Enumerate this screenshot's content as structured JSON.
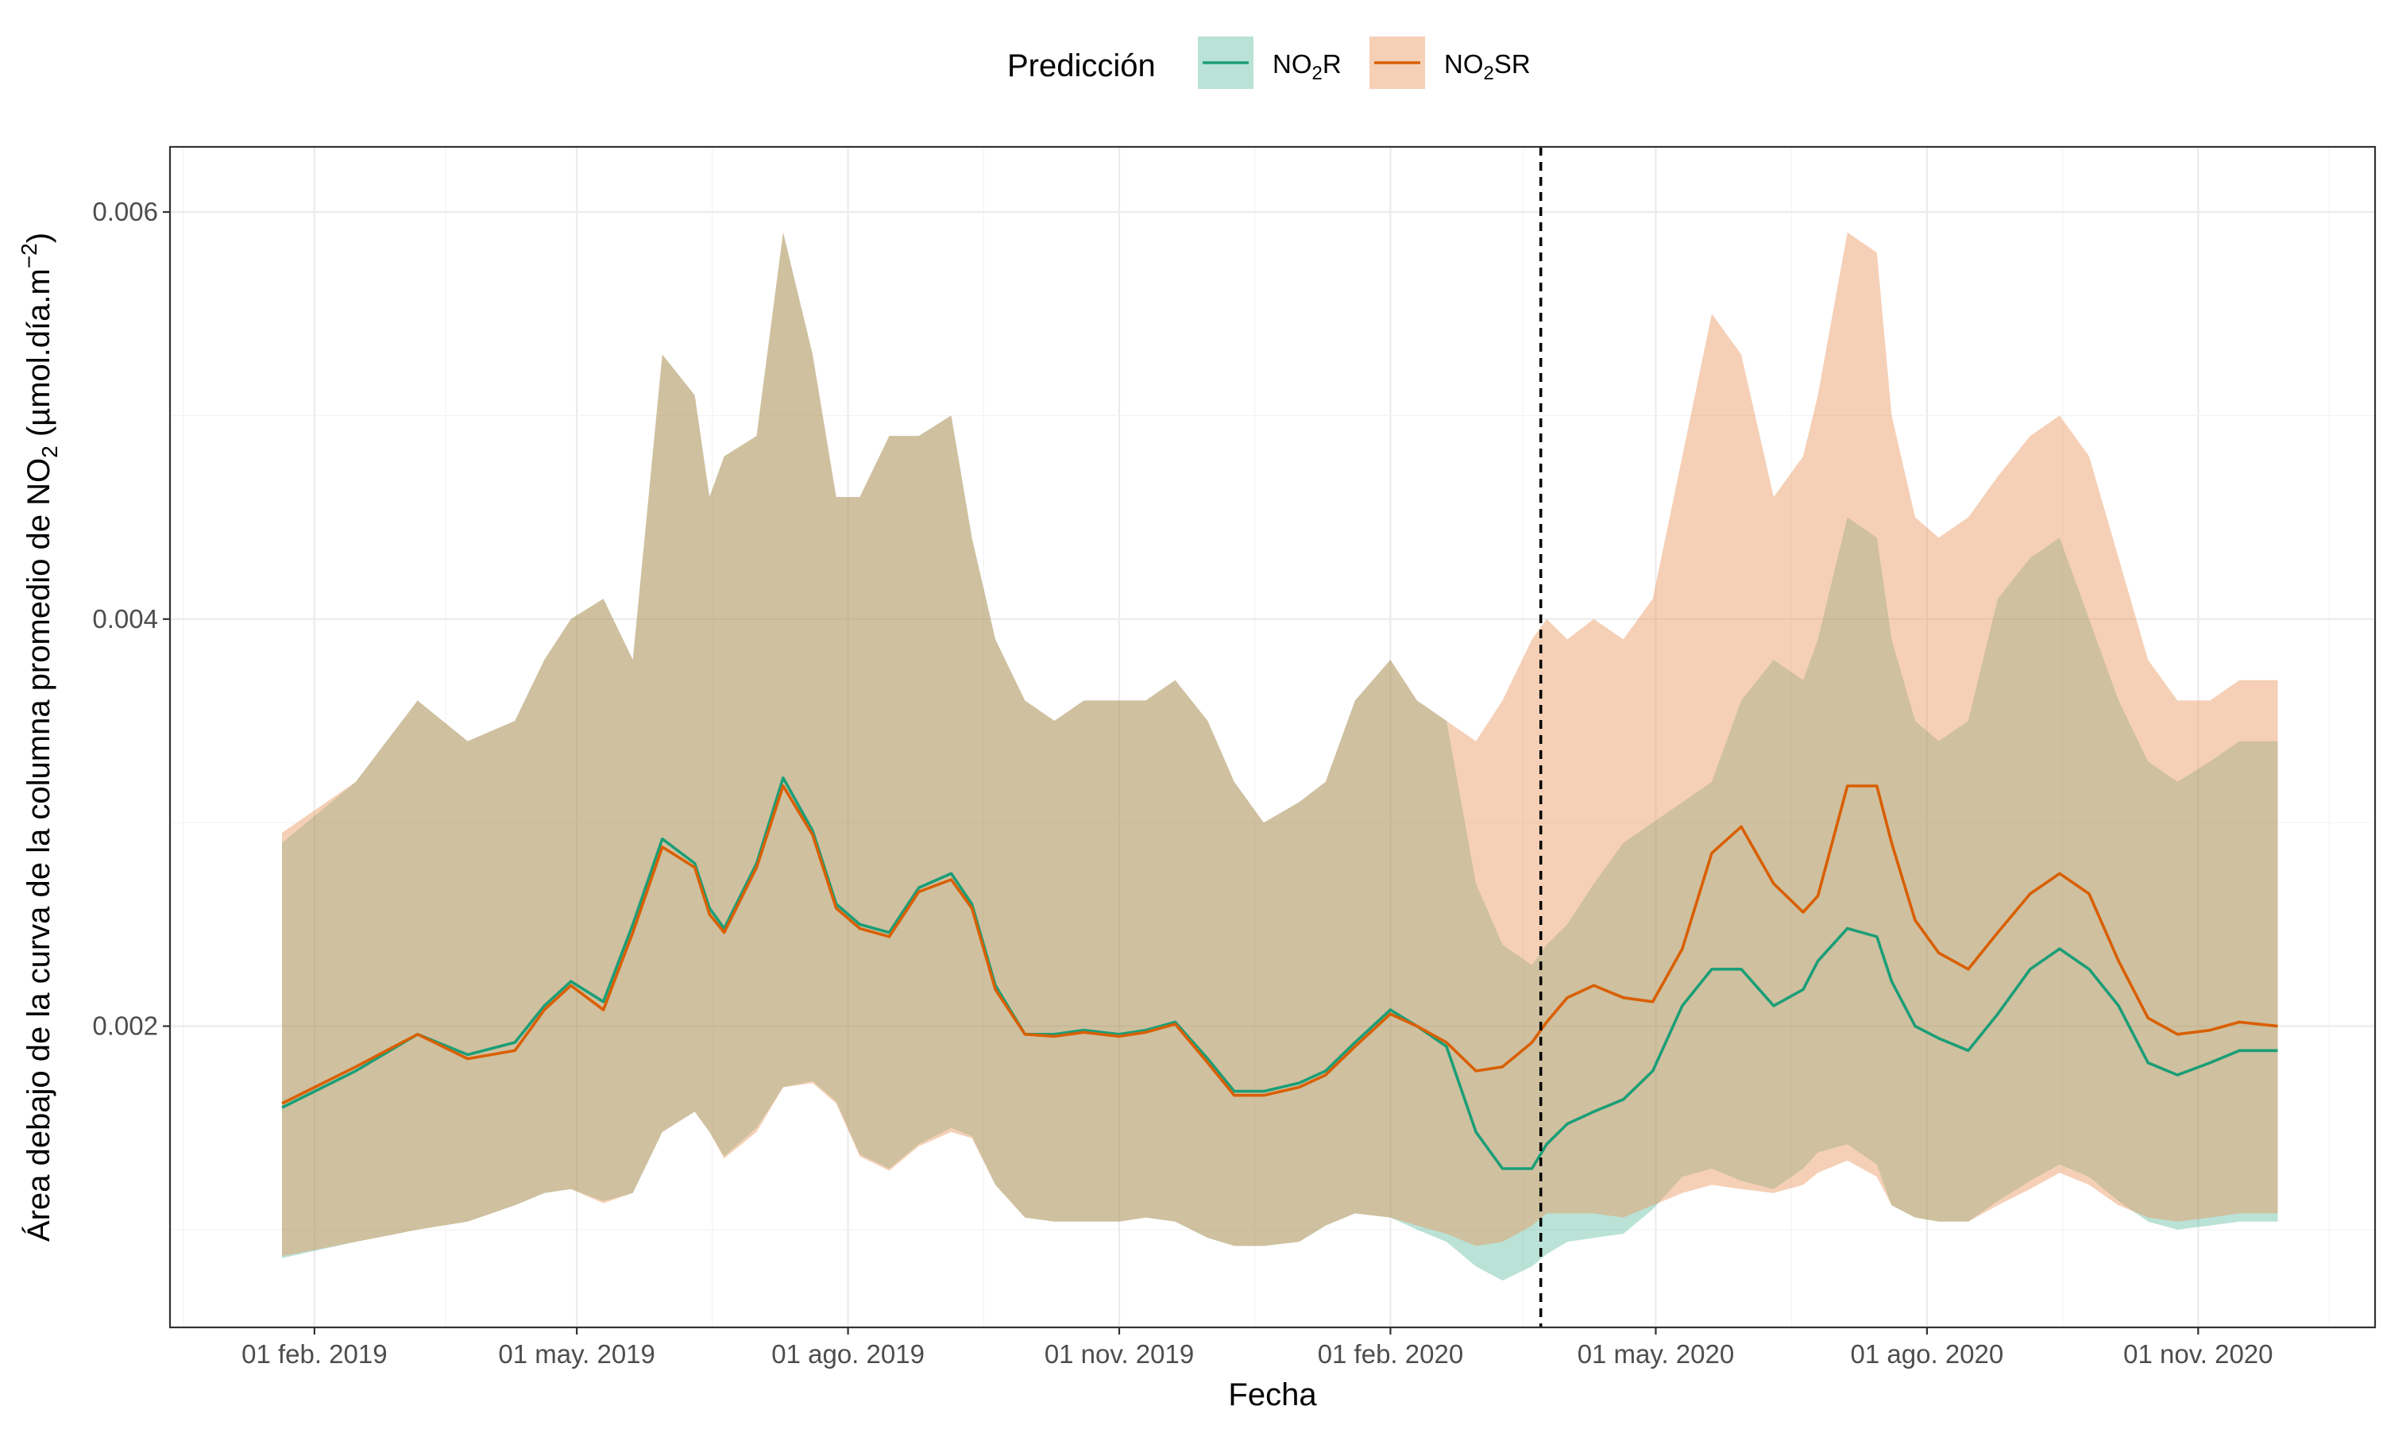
{
  "chart_data": {
    "type": "area",
    "xlabel": "Fecha",
    "ylabel": "Área debajo de la curva de la columna promedio de NO₂ (µmol.día.m⁻²)",
    "ylabel_parts": {
      "pre": "Área debajo de la curva de la columna promedio de NO",
      "sub": "2",
      "mid": " (µmol.día.m",
      "sup": "−2",
      "post": ")"
    },
    "legend_title": "Predicción",
    "legend_position": "top",
    "grid": true,
    "x_dates": [
      "2019-01-21",
      "2019-02-15",
      "2019-03-08",
      "2019-03-25",
      "2019-04-10",
      "2019-04-20",
      "2019-04-29",
      "2019-05-10",
      "2019-05-20",
      "2019-05-30",
      "2019-06-10",
      "2019-06-15",
      "2019-06-20",
      "2019-07-01",
      "2019-07-10",
      "2019-07-20",
      "2019-07-28",
      "2019-08-05",
      "2019-08-15",
      "2019-08-25",
      "2019-09-05",
      "2019-09-12",
      "2019-09-20",
      "2019-09-30",
      "2019-10-10",
      "2019-10-20",
      "2019-11-01",
      "2019-11-10",
      "2019-11-20",
      "2019-12-01",
      "2019-12-10",
      "2019-12-20",
      "2020-01-01",
      "2020-01-10",
      "2020-01-20",
      "2020-02-01",
      "2020-02-10",
      "2020-02-20",
      "2020-03-01",
      "2020-03-10",
      "2020-03-20",
      "2020-03-25",
      "2020-04-01",
      "2020-04-10",
      "2020-04-20",
      "2020-04-30",
      "2020-05-10",
      "2020-05-20",
      "2020-05-30",
      "2020-06-10",
      "2020-06-20",
      "2020-06-25",
      "2020-07-05",
      "2020-07-15",
      "2020-07-20",
      "2020-07-28",
      "2020-08-05",
      "2020-08-15",
      "2020-08-25",
      "2020-09-05",
      "2020-09-15",
      "2020-09-25",
      "2020-10-05",
      "2020-10-15",
      "2020-10-25",
      "2020-11-05",
      "2020-11-15",
      "2020-11-28"
    ],
    "x_ticks": [
      "2019-02-01",
      "2019-05-01",
      "2019-08-01",
      "2019-11-01",
      "2020-02-01",
      "2020-05-01",
      "2020-08-01",
      "2020-11-01"
    ],
    "x_tick_labels": [
      "01 feb. 2019",
      "01 may. 2019",
      "01 ago. 2019",
      "01 nov. 2019",
      "01 feb. 2020",
      "01 may. 2020",
      "01 ago. 2020",
      "01 nov. 2020"
    ],
    "x_range": [
      "2018-12-14",
      "2020-12-31"
    ],
    "vline": "2020-03-23",
    "y_ticks": [
      0.002,
      0.004,
      0.006
    ],
    "y_tick_labels": [
      "0.002",
      "0.004",
      "0.006"
    ],
    "ylim": [
      0.00052,
      0.00632
    ],
    "series": [
      {
        "name": "NO2R",
        "label_main": "NO",
        "label_sub": "2",
        "label_post": "R",
        "line_color": "#1b9e77",
        "fill_color": "#1b9e77",
        "fill_opacity": 0.3,
        "values": [
          0.0016,
          0.00178,
          0.00196,
          0.00186,
          0.00192,
          0.0021,
          0.00222,
          0.00212,
          0.0025,
          0.00292,
          0.0028,
          0.00258,
          0.00248,
          0.0028,
          0.00322,
          0.00296,
          0.0026,
          0.0025,
          0.00246,
          0.00268,
          0.00275,
          0.0026,
          0.0022,
          0.00196,
          0.00196,
          0.00198,
          0.00196,
          0.00198,
          0.00202,
          0.00184,
          0.00168,
          0.00168,
          0.00172,
          0.00178,
          0.00192,
          0.00208,
          0.002,
          0.0019,
          0.00148,
          0.0013,
          0.0013,
          0.00142,
          0.00152,
          0.00158,
          0.00164,
          0.00178,
          0.0021,
          0.00228,
          0.00228,
          0.0021,
          0.00218,
          0.00232,
          0.00248,
          0.00244,
          0.00222,
          0.002,
          0.00194,
          0.00188,
          0.00206,
          0.00228,
          0.00238,
          0.00228,
          0.0021,
          0.00182,
          0.00176,
          0.00182,
          0.00188,
          0.00188
        ],
        "lower": [
          0.00086,
          0.00094,
          0.001,
          0.00104,
          0.00112,
          0.00118,
          0.0012,
          0.00114,
          0.00118,
          0.00148,
          0.00158,
          0.00148,
          0.00136,
          0.0015,
          0.0017,
          0.00173,
          0.00163,
          0.00137,
          0.0013,
          0.00142,
          0.0015,
          0.00146,
          0.00122,
          0.00106,
          0.00104,
          0.00104,
          0.00104,
          0.00106,
          0.00104,
          0.00096,
          0.00092,
          0.00092,
          0.00094,
          0.00102,
          0.00108,
          0.00106,
          0.001,
          0.00094,
          0.00082,
          0.00075,
          0.00082,
          0.00088,
          0.00094,
          0.00096,
          0.00098,
          0.0011,
          0.00126,
          0.0013,
          0.00124,
          0.0012,
          0.0013,
          0.00138,
          0.00142,
          0.00132,
          0.00112,
          0.00106,
          0.00104,
          0.00104,
          0.00114,
          0.00124,
          0.00132,
          0.00126,
          0.00114,
          0.00104,
          0.001,
          0.00102,
          0.00104,
          0.00104
        ],
        "upper": [
          0.0029,
          0.0032,
          0.0036,
          0.0034,
          0.0035,
          0.0038,
          0.004,
          0.0041,
          0.0038,
          0.0053,
          0.0051,
          0.0046,
          0.0048,
          0.0049,
          0.0059,
          0.0053,
          0.0046,
          0.0046,
          0.0049,
          0.0049,
          0.005,
          0.0044,
          0.0039,
          0.0036,
          0.0035,
          0.0036,
          0.0036,
          0.0036,
          0.0037,
          0.0035,
          0.0032,
          0.003,
          0.0031,
          0.0032,
          0.0036,
          0.0038,
          0.0036,
          0.0035,
          0.0027,
          0.0024,
          0.0023,
          0.0024,
          0.0025,
          0.0027,
          0.0029,
          0.003,
          0.0031,
          0.0032,
          0.0036,
          0.0038,
          0.0037,
          0.0039,
          0.0045,
          0.0044,
          0.0039,
          0.0035,
          0.0034,
          0.0035,
          0.0041,
          0.0043,
          0.0044,
          0.004,
          0.0036,
          0.0033,
          0.0032,
          0.0033,
          0.0034,
          0.0034
        ]
      },
      {
        "name": "NO2SR",
        "label_main": "NO",
        "label_sub": "2",
        "label_post": "SR",
        "line_color": "#d95f02",
        "fill_color": "#e8975e",
        "fill_opacity": 0.45,
        "values": [
          0.00162,
          0.0018,
          0.00196,
          0.00184,
          0.00188,
          0.00208,
          0.0022,
          0.00208,
          0.00246,
          0.00288,
          0.00278,
          0.00255,
          0.00246,
          0.00278,
          0.00318,
          0.00294,
          0.00258,
          0.00248,
          0.00244,
          0.00266,
          0.00272,
          0.00258,
          0.00218,
          0.00196,
          0.00195,
          0.00197,
          0.00195,
          0.00197,
          0.00201,
          0.00182,
          0.00166,
          0.00166,
          0.0017,
          0.00176,
          0.0019,
          0.00206,
          0.002,
          0.00192,
          0.00178,
          0.0018,
          0.00192,
          0.00202,
          0.00214,
          0.0022,
          0.00214,
          0.00212,
          0.00238,
          0.00285,
          0.00298,
          0.0027,
          0.00256,
          0.00264,
          0.00318,
          0.00318,
          0.0029,
          0.00252,
          0.00236,
          0.00228,
          0.00246,
          0.00265,
          0.00275,
          0.00265,
          0.00232,
          0.00204,
          0.00196,
          0.00198,
          0.00202,
          0.002
        ],
        "lower": [
          0.00087,
          0.00094,
          0.001,
          0.00104,
          0.00112,
          0.00118,
          0.0012,
          0.00113,
          0.00118,
          0.00148,
          0.00158,
          0.00148,
          0.00135,
          0.00148,
          0.0017,
          0.00172,
          0.00162,
          0.00136,
          0.00129,
          0.00141,
          0.00148,
          0.00145,
          0.00122,
          0.00106,
          0.00104,
          0.00104,
          0.00104,
          0.00106,
          0.00104,
          0.00096,
          0.00092,
          0.00092,
          0.00094,
          0.00102,
          0.00108,
          0.00106,
          0.00102,
          0.00098,
          0.00092,
          0.00094,
          0.00102,
          0.00108,
          0.00108,
          0.00108,
          0.00106,
          0.00112,
          0.00118,
          0.00122,
          0.0012,
          0.00118,
          0.00122,
          0.00128,
          0.00134,
          0.00126,
          0.00112,
          0.00106,
          0.00104,
          0.00104,
          0.00112,
          0.0012,
          0.00128,
          0.00122,
          0.00112,
          0.00106,
          0.00104,
          0.00106,
          0.00108,
          0.00108
        ],
        "upper": [
          0.00295,
          0.0032,
          0.0036,
          0.0034,
          0.0035,
          0.0038,
          0.004,
          0.0041,
          0.0038,
          0.0053,
          0.0051,
          0.0046,
          0.0048,
          0.0049,
          0.0059,
          0.0053,
          0.0046,
          0.0046,
          0.0049,
          0.0049,
          0.005,
          0.0044,
          0.0039,
          0.0036,
          0.0035,
          0.0036,
          0.0036,
          0.0036,
          0.0037,
          0.0035,
          0.0032,
          0.003,
          0.0031,
          0.0032,
          0.0036,
          0.0038,
          0.0036,
          0.0035,
          0.0034,
          0.0036,
          0.0039,
          0.004,
          0.0039,
          0.004,
          0.0039,
          0.0041,
          0.0048,
          0.0055,
          0.0053,
          0.0046,
          0.0048,
          0.0051,
          0.0059,
          0.0058,
          0.005,
          0.0045,
          0.0044,
          0.0045,
          0.0047,
          0.0049,
          0.005,
          0.0048,
          0.0043,
          0.0038,
          0.0036,
          0.0036,
          0.0037,
          0.0037
        ]
      }
    ]
  }
}
